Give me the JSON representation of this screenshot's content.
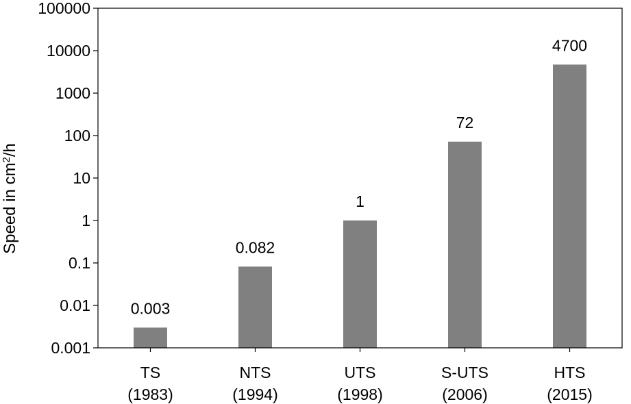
{
  "chart_data": {
    "type": "bar",
    "title": "",
    "xlabel": "",
    "ylabel": {
      "text": "Speed in cm",
      "superscript": "2",
      "suffix": "/h"
    },
    "yscale": "log",
    "ylim": [
      0.001,
      100000
    ],
    "yticks": [
      "0.001",
      "0.01",
      "0.1",
      "1",
      "10",
      "100",
      "1000",
      "10000",
      "100000"
    ],
    "ytick_values": [
      0.001,
      0.01,
      0.1,
      1,
      10,
      100,
      1000,
      10000,
      100000
    ],
    "categories": [
      {
        "name": "TS",
        "year": "(1983)"
      },
      {
        "name": "NTS",
        "year": "(1994)"
      },
      {
        "name": "UTS",
        "year": "(1998)"
      },
      {
        "name": "S-UTS",
        "year": "(2006)"
      },
      {
        "name": "HTS",
        "year": "(2015)"
      }
    ],
    "values": [
      0.003,
      0.082,
      1,
      72,
      4700
    ],
    "data_labels": [
      "0.003",
      "0.082",
      "1",
      "72",
      "4700"
    ],
    "bar_color": "#808080",
    "grid": false,
    "legend": "none"
  }
}
